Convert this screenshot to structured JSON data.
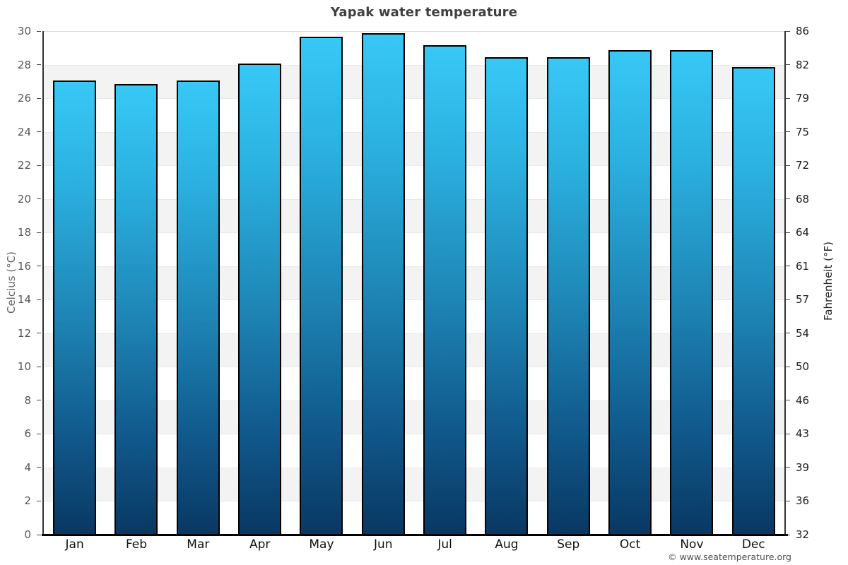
{
  "title": "Yapak water temperature",
  "footer": "© www.seatemperature.org",
  "chart_data": {
    "type": "bar",
    "title": "Yapak water temperature",
    "categories": [
      "Jan",
      "Feb",
      "Mar",
      "Apr",
      "May",
      "Jun",
      "Jul",
      "Aug",
      "Sep",
      "Oct",
      "Nov",
      "Dec"
    ],
    "values": [
      27.1,
      26.9,
      27.1,
      28.1,
      29.7,
      29.9,
      29.2,
      28.5,
      28.5,
      28.9,
      28.9,
      27.9
    ],
    "unit": "°C",
    "ylabel_left": "Celcius (°C)",
    "ylabel_right": "Fahrenheit (°F)",
    "ylim": [
      0,
      30
    ],
    "yticks_celsius": [
      30,
      28,
      26,
      24,
      22,
      20,
      18,
      16,
      14,
      12,
      10,
      8,
      6,
      4,
      2,
      0
    ],
    "yticks_fahrenheit": [
      86,
      82,
      79,
      75,
      72,
      68,
      64,
      61,
      57,
      54,
      50,
      46,
      43,
      39,
      36,
      32
    ],
    "grid": "alternating 2°C horizontal bands, white and light gray, top band white",
    "legend_position": "none",
    "colors": {
      "bar_gradient_top": "#38c8f6",
      "bar_gradient_mid": "#1e85b5",
      "bar_gradient_bottom": "#093862",
      "bar_border": "#000000",
      "band_gray": "#f3f3f3",
      "band_white": "#ffffff",
      "axis_line": "#333333",
      "bottom_axis": "#000000",
      "title_color": "#3f3f3f",
      "left_tick_color": "#565656",
      "right_tick_color": "#1c1c1c"
    }
  }
}
